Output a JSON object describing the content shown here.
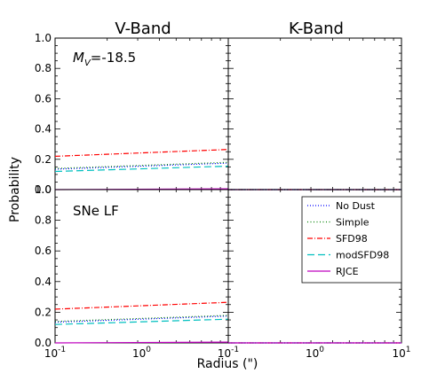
{
  "chart_data": {
    "type": "line",
    "column_titles": [
      "V-Band",
      "K-Band"
    ],
    "xlabel": "Radius (\")",
    "ylabel": "Probability",
    "xscale": "log",
    "xlim": [
      0.1,
      10
    ],
    "ylim": [
      0.0,
      1.0
    ],
    "x_tick_labels": [
      {
        "base": "10",
        "exp": "-1"
      },
      {
        "base": "10",
        "exp": "0"
      },
      {
        "base": "10",
        "exp": "-1"
      },
      {
        "base": "10",
        "exp": "0"
      },
      {
        "base": "10",
        "exp": "1"
      }
    ],
    "y_tick_labels": [
      "0.0",
      "0.2",
      "0.4",
      "0.6",
      "0.8",
      "1.0"
    ],
    "legend_placement": "bottom-right panel, top-right",
    "series_styles": [
      {
        "name": "No Dust",
        "color": "#0000ff",
        "dash": "1,2"
      },
      {
        "name": "Simple",
        "color": "#008000",
        "dash": "1,2.5"
      },
      {
        "name": "SFD98",
        "color": "#ff0000",
        "dash": "6,2,1,2"
      },
      {
        "name": "modSFD98",
        "color": "#00bfbf",
        "dash": "8,4"
      },
      {
        "name": "RJCE",
        "color": "#bf00bf",
        "dash": ""
      }
    ],
    "panels": [
      {
        "id": "top-left",
        "annotation_base": "M",
        "annotation_sub": "V",
        "annotation_rest": "=-18.5",
        "x": [
          0.1,
          1.0
        ],
        "series": [
          {
            "name": "No Dust",
            "values": [
              0.135,
              0.175
            ]
          },
          {
            "name": "Simple",
            "values": [
              0.14,
              0.18
            ]
          },
          {
            "name": "SFD98",
            "values": [
              0.22,
              0.265
            ]
          },
          {
            "name": "modSFD98",
            "values": [
              0.12,
              0.155
            ]
          },
          {
            "name": "RJCE",
            "values": [
              0.0,
              0.005
            ]
          }
        ]
      },
      {
        "id": "top-right",
        "x": [
          1.0,
          10.0
        ],
        "series": [
          {
            "name": "No Dust",
            "values": [
              0.0,
              0.0
            ]
          },
          {
            "name": "Simple",
            "values": [
              0.0,
              0.0
            ]
          },
          {
            "name": "SFD98",
            "values": [
              0.0,
              0.0
            ]
          },
          {
            "name": "modSFD98",
            "values": [
              0.0,
              0.0
            ]
          },
          {
            "name": "RJCE",
            "values": [
              0.0,
              0.0
            ]
          }
        ]
      },
      {
        "id": "bottom-left",
        "annotation": "SNe LF",
        "x": [
          0.1,
          1.0
        ],
        "series": [
          {
            "name": "No Dust",
            "values": [
              0.135,
              0.175
            ]
          },
          {
            "name": "Simple",
            "values": [
              0.14,
              0.18
            ]
          },
          {
            "name": "SFD98",
            "values": [
              0.22,
              0.265
            ]
          },
          {
            "name": "modSFD98",
            "values": [
              0.12,
              0.155
            ]
          },
          {
            "name": "RJCE",
            "values": [
              0.0,
              0.005
            ]
          }
        ]
      },
      {
        "id": "bottom-right",
        "x": [
          1.0,
          10.0
        ],
        "series": [
          {
            "name": "No Dust",
            "values": [
              0.0,
              0.0
            ]
          },
          {
            "name": "Simple",
            "values": [
              0.0,
              0.0
            ]
          },
          {
            "name": "SFD98",
            "values": [
              0.0,
              0.0
            ]
          },
          {
            "name": "modSFD98",
            "values": [
              0.0,
              0.0
            ]
          },
          {
            "name": "RJCE",
            "values": [
              0.0,
              0.0
            ]
          }
        ]
      }
    ]
  }
}
